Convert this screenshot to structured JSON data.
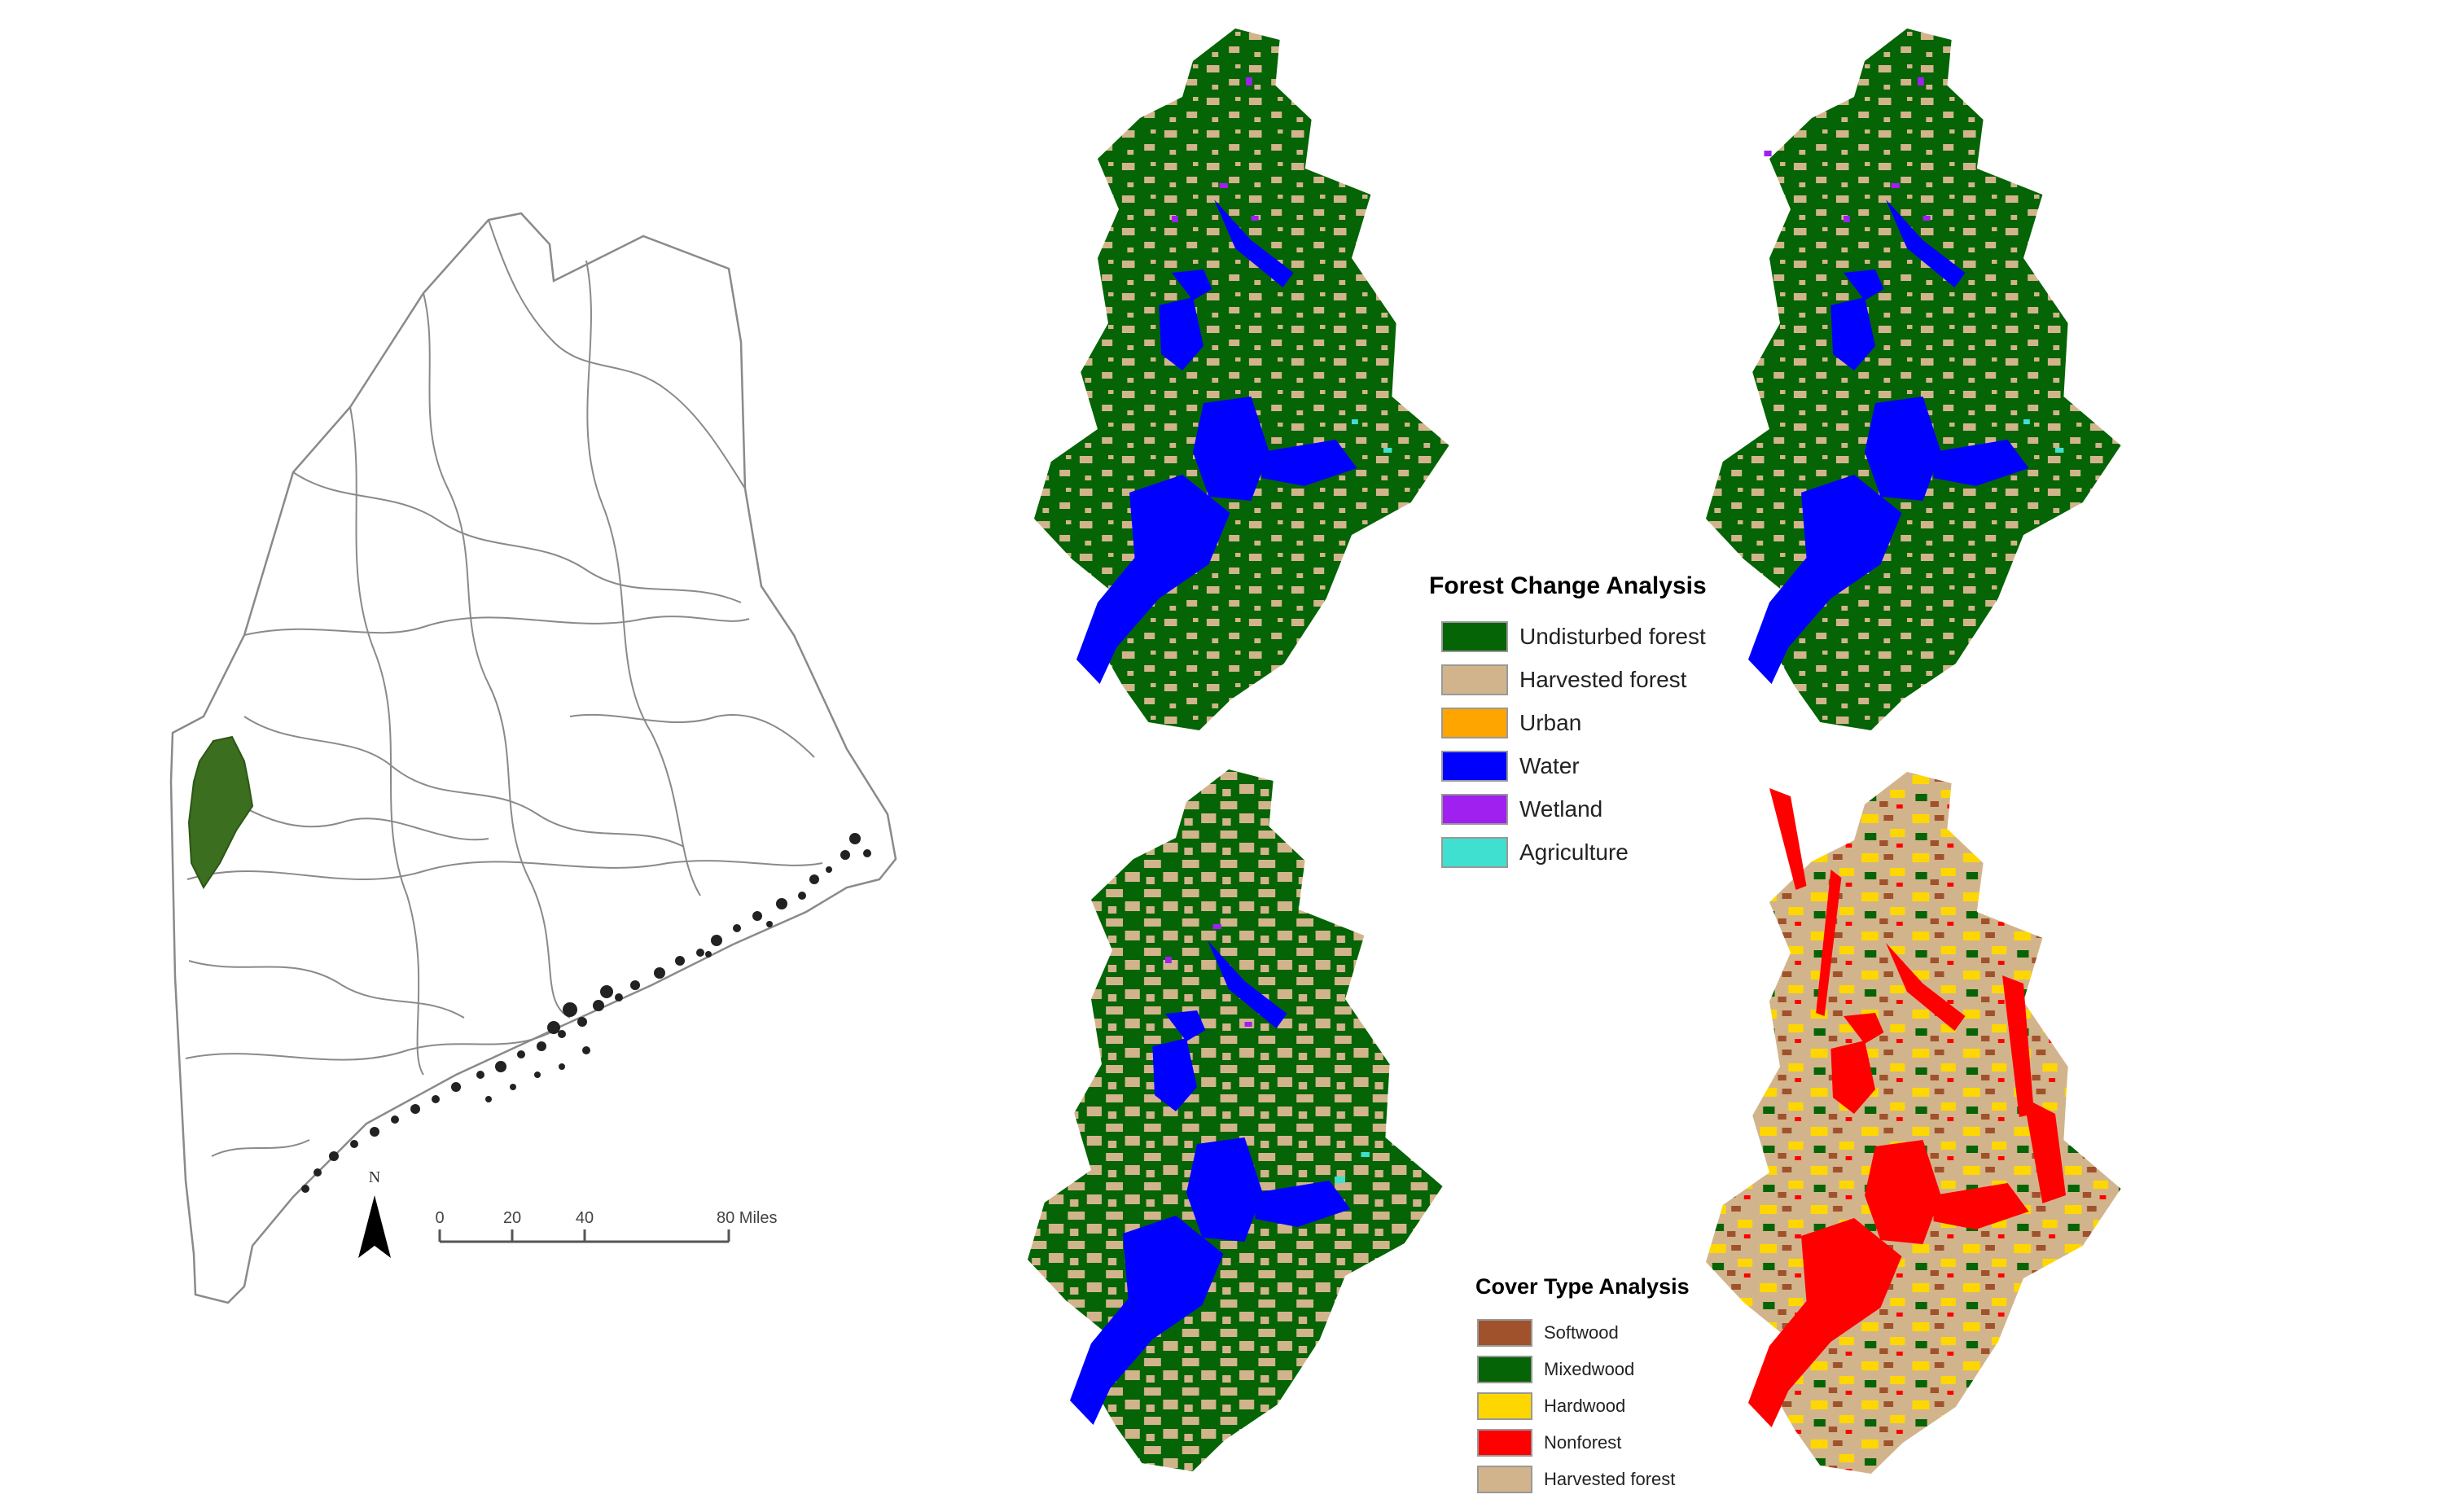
{
  "state_map": {
    "north_arrow": {
      "label": "N"
    },
    "scale_bar": {
      "ticks": [
        "0",
        "20",
        "40",
        "80 Miles"
      ]
    },
    "highlight_color": "#3b6e1e"
  },
  "forest_change_legend": {
    "title": "Forest Change Analysis",
    "items": [
      {
        "label": "Undisturbed forest",
        "color": "#056405"
      },
      {
        "label": "Harvested forest",
        "color": "#d2b48c"
      },
      {
        "label": "Urban",
        "color": "#ffa500"
      },
      {
        "label": "Water",
        "color": "#0000ff"
      },
      {
        "label": "Wetland",
        "color": "#a020f0"
      },
      {
        "label": "Agriculture",
        "color": "#40e0d0"
      }
    ]
  },
  "cover_type_legend": {
    "title": "Cover Type Analysis",
    "items": [
      {
        "label": "Softwood",
        "color": "#a0522d"
      },
      {
        "label": "Mixedwood",
        "color": "#056405"
      },
      {
        "label": "Hardwood",
        "color": "#ffd700"
      },
      {
        "label": "Nonforest",
        "color": "#ff0000"
      },
      {
        "label": "Harvested forest",
        "color": "#d2b48c"
      }
    ]
  }
}
